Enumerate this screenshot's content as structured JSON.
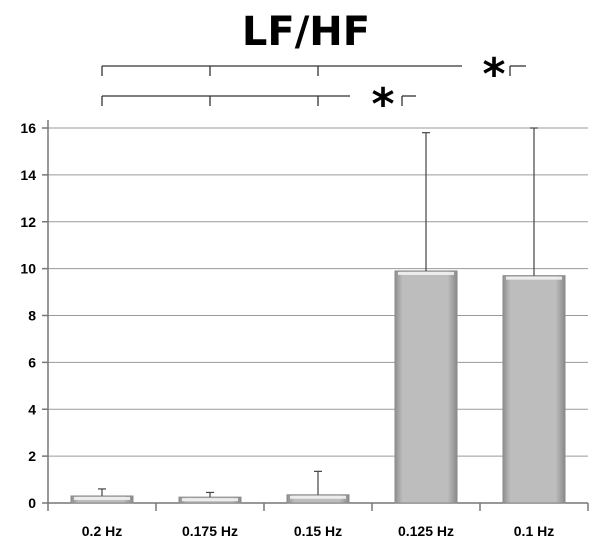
{
  "chart_data": {
    "type": "bar",
    "title": "LF/HF",
    "xlabel": "",
    "ylabel": "",
    "categories": [
      "0.2 Hz",
      "0.175 Hz",
      "0.15 Hz",
      "0.125 Hz",
      "0.1 Hz"
    ],
    "values": [
      0.3,
      0.25,
      0.35,
      9.9,
      9.7
    ],
    "error_bars": [
      0.6,
      0.45,
      1.35,
      15.8,
      16.0
    ],
    "ylim": [
      0,
      16
    ],
    "yticks": [
      0,
      2,
      4,
      6,
      8,
      10,
      12,
      14,
      16
    ],
    "grid": true,
    "bar_color": "#bdbdbd",
    "significance": [
      {
        "from_index": 0,
        "to_index": 4,
        "marked_indices": [
          0,
          1,
          2
        ],
        "label": "*"
      },
      {
        "from_index": 0,
        "to_index": 3,
        "marked_indices": [
          0,
          1,
          2
        ],
        "label": "*"
      }
    ]
  }
}
